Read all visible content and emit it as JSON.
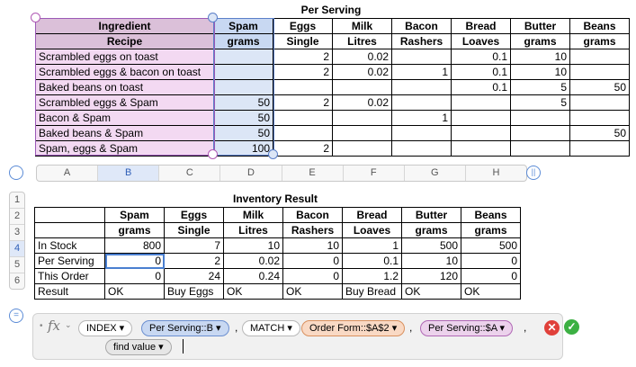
{
  "per_serving": {
    "title": "Per Serving",
    "header_top": [
      "Ingredient",
      "Spam",
      "Eggs",
      "Milk",
      "Bacon",
      "Bread",
      "Butter",
      "Beans"
    ],
    "header_units": [
      "Recipe",
      "grams",
      "Single",
      "Litres",
      "Rashers",
      "Loaves",
      "grams",
      "grams"
    ],
    "rows": [
      [
        "Scrambled eggs on toast",
        "",
        "2",
        "0.02",
        "",
        "0.1",
        "10",
        ""
      ],
      [
        "Scrambled eggs & bacon on toast",
        "",
        "2",
        "0.02",
        "1",
        "0.1",
        "10",
        ""
      ],
      [
        "Baked beans on toast",
        "",
        "",
        "",
        "",
        "0.1",
        "5",
        "50"
      ],
      [
        "Scrambled eggs & Spam",
        "50",
        "2",
        "0.02",
        "",
        "",
        "5",
        ""
      ],
      [
        "Bacon & Spam",
        "50",
        "",
        "",
        "1",
        "",
        "",
        ""
      ],
      [
        "Baked beans & Spam",
        "50",
        "",
        "",
        "",
        "",
        "",
        "50"
      ],
      [
        "Spam, eggs & Spam",
        "100",
        "2",
        "",
        "",
        "",
        "",
        ""
      ]
    ]
  },
  "column_headers": [
    "A",
    "B",
    "C",
    "D",
    "E",
    "F",
    "G",
    "H"
  ],
  "row_headers": [
    "1",
    "2",
    "3",
    "4",
    "5",
    "6"
  ],
  "inventory": {
    "title": "Inventory Result",
    "header_top": [
      "",
      "Spam",
      "Eggs",
      "Milk",
      "Bacon",
      "Bread",
      "Butter",
      "Beans"
    ],
    "header_units": [
      "",
      "grams",
      "Single",
      "Litres",
      "Rashers",
      "Loaves",
      "grams",
      "grams"
    ],
    "rows": [
      [
        "In Stock",
        "800",
        "7",
        "10",
        "10",
        "1",
        "500",
        "500"
      ],
      [
        "Per Serving",
        "0",
        "2",
        "0.02",
        "0",
        "0.1",
        "10",
        "0"
      ],
      [
        "This Order",
        "0",
        "24",
        "0.24",
        "0",
        "1.2",
        "120",
        "0"
      ],
      [
        "Result",
        "OK",
        "Buy Eggs",
        "OK",
        "OK",
        "Buy Bread",
        "OK",
        "OK"
      ]
    ]
  },
  "formula_bar": {
    "fx_label": "fx",
    "tokens": {
      "index": "INDEX",
      "ref_b": "Per Serving::B",
      "match": "MATCH",
      "order_form": "Order Form::$A$2",
      "ref_a": "Per Serving::$A",
      "find_value": "find value"
    },
    "comma": ","
  },
  "colors": {
    "accent": "#4a7fd0",
    "cancel": "#e0403a",
    "confirm": "#3cb043"
  }
}
